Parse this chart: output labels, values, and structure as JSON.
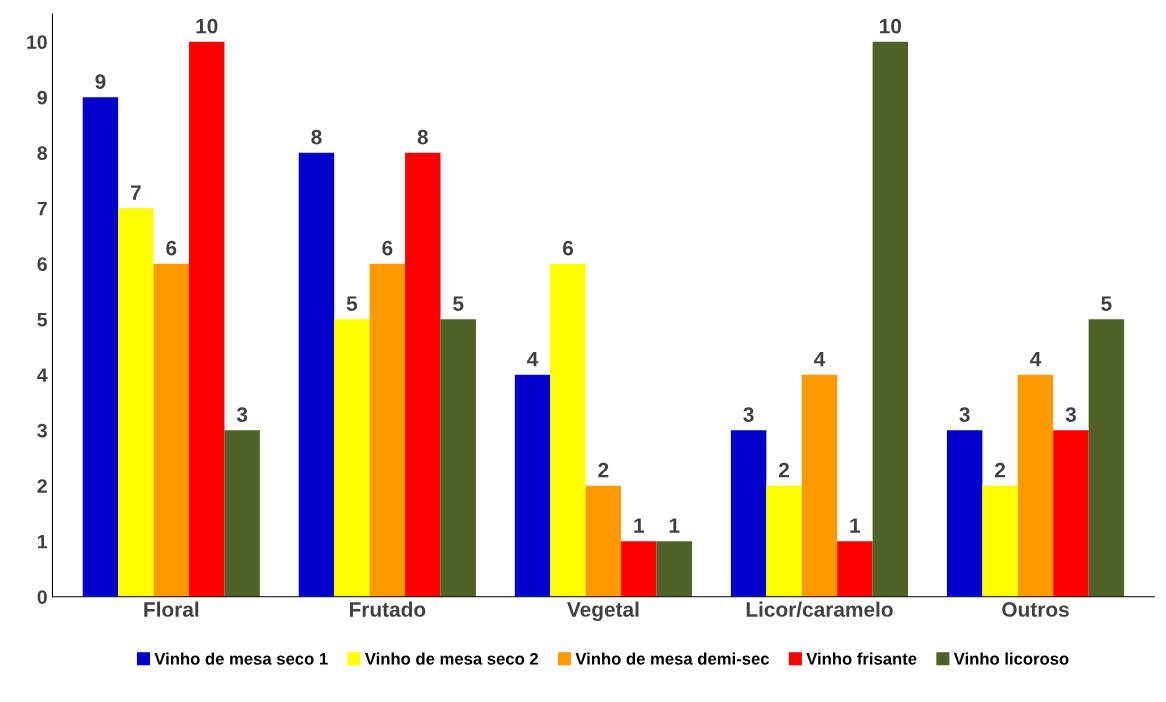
{
  "chart_data": {
    "type": "bar",
    "categories": [
      "Floral",
      "Frutado",
      "Vegetal",
      "Licor/caramelo",
      "Outros"
    ],
    "series": [
      {
        "name": "Vinho de mesa seco 1",
        "color": "#0000cc",
        "values": [
          9,
          8,
          4,
          3,
          3
        ]
      },
      {
        "name": "Vinho de mesa seco 2",
        "color": "#ffff00",
        "values": [
          7,
          5,
          6,
          2,
          2
        ]
      },
      {
        "name": "Vinho de mesa demi-sec",
        "color": "#ff9900",
        "values": [
          6,
          6,
          2,
          4,
          4
        ]
      },
      {
        "name": "Vinho frisante",
        "color": "#ff0000",
        "values": [
          10,
          8,
          1,
          1,
          3
        ]
      },
      {
        "name": "Vinho licoroso",
        "color": "#4f6228",
        "values": [
          3,
          5,
          1,
          10,
          5
        ]
      }
    ],
    "ylim": [
      0,
      10.5
    ],
    "yticks": [
      0,
      1,
      2,
      3,
      4,
      5,
      6,
      7,
      8,
      9,
      10
    ],
    "data_labels": true,
    "grid": false,
    "legend": "bottom"
  }
}
